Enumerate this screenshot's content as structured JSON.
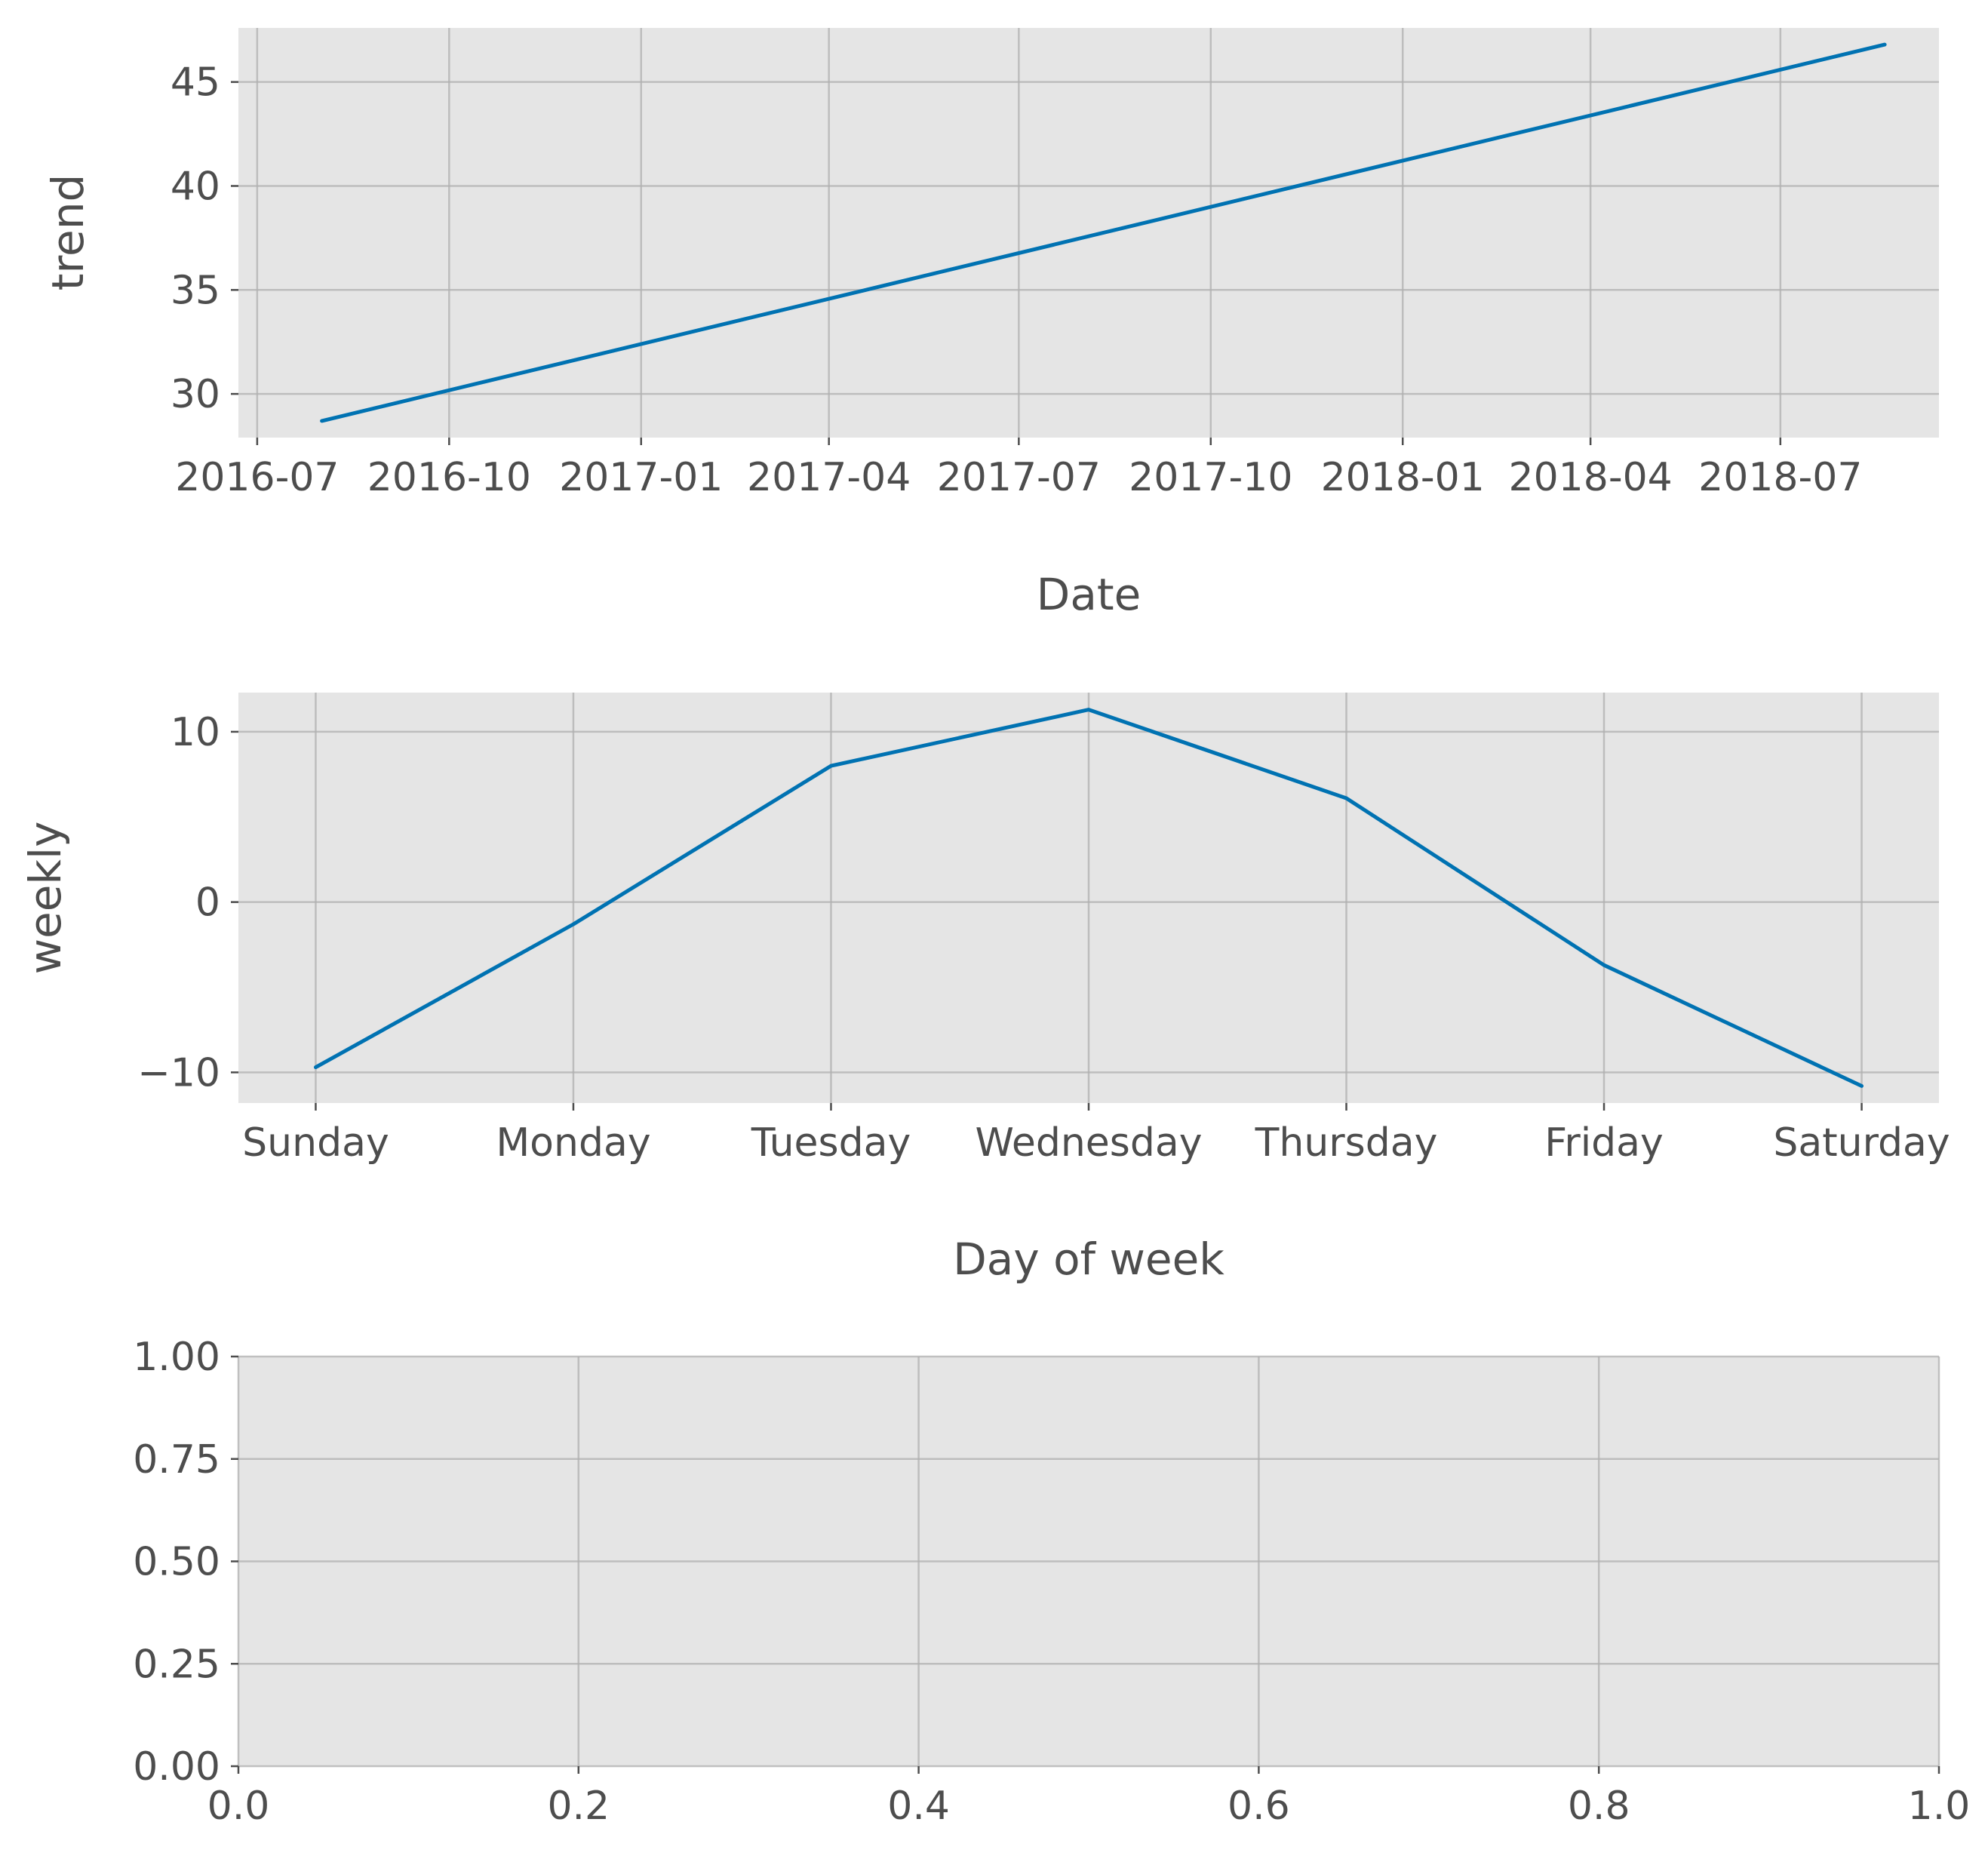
{
  "chart_data": [
    {
      "type": "line",
      "xlabel": "Date",
      "ylabel": "trend",
      "x_axis": "date",
      "xlim": [
        "2016-06-22",
        "2018-09-15"
      ],
      "ylim": [
        27.9,
        47.6
      ],
      "xticks": [
        "2016-07",
        "2016-10",
        "2017-01",
        "2017-04",
        "2017-07",
        "2017-10",
        "2018-01",
        "2018-04",
        "2018-07"
      ],
      "yticks": [
        30,
        35,
        40,
        45
      ],
      "grid": true,
      "color": "#0072b2",
      "series": [
        {
          "x": [
            "2016-08-01",
            "2018-08-20"
          ],
          "values": [
            28.7,
            46.8
          ]
        }
      ]
    },
    {
      "type": "line",
      "xlabel": "Day of week",
      "ylabel": "weekly",
      "categories": [
        "Sunday",
        "Monday",
        "Tuesday",
        "Wednesday",
        "Thursday",
        "Friday",
        "Saturday"
      ],
      "ylim": [
        -11.8,
        12.3
      ],
      "yticks": [
        -10,
        0,
        10
      ],
      "ytick_labels": [
        "−10",
        "0",
        "10"
      ],
      "grid": true,
      "color": "#0072b2",
      "series": [
        {
          "values": [
            -9.7,
            -1.3,
            8.0,
            11.3,
            6.1,
            -3.7,
            -10.8
          ]
        }
      ]
    },
    {
      "type": "line",
      "xlabel": "",
      "ylabel": "",
      "xlim": [
        0.0,
        1.0
      ],
      "ylim": [
        0.0,
        1.0
      ],
      "xticks": [
        0.0,
        0.2,
        0.4,
        0.6,
        0.8,
        1.0
      ],
      "xtick_labels": [
        "0.0",
        "0.2",
        "0.4",
        "0.6",
        "0.8",
        "1.0"
      ],
      "yticks": [
        0.0,
        0.25,
        0.5,
        0.75,
        1.0
      ],
      "ytick_labels": [
        "0.00",
        "0.25",
        "0.50",
        "0.75",
        "1.00"
      ],
      "grid": true,
      "series": []
    }
  ]
}
